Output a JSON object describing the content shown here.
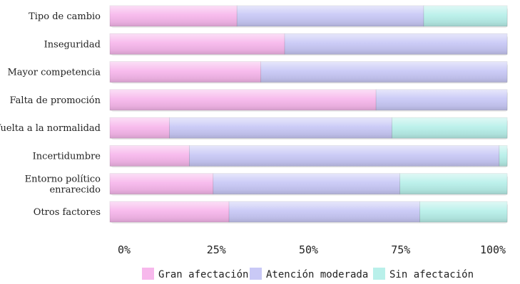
{
  "chart_data": {
    "type": "bar",
    "orientation": "horizontal",
    "stacked": true,
    "normalized": true,
    "categories": [
      [
        "Tipo de cambio"
      ],
      [
        "Inseguridad"
      ],
      [
        "Mayor competencia"
      ],
      [
        "Falta de promoción"
      ],
      [
        "Vuelta a la normalidad"
      ],
      [
        "Incertidumbre"
      ],
      [
        "Entorno político",
        "enrarecido"
      ],
      [
        "Otros factores"
      ]
    ],
    "series": [
      {
        "name": "Gran afectación",
        "color": "#f7b8ec",
        "values": [
          32,
          44,
          38,
          67,
          15,
          20,
          26,
          30
        ]
      },
      {
        "name": "Atención moderada",
        "color": "#c9c9f6",
        "values": [
          47,
          56,
          62,
          33,
          56,
          78,
          47,
          48
        ]
      },
      {
        "name": "Sin afectación",
        "color": "#b9f0ea",
        "values": [
          21,
          0,
          0,
          0,
          29,
          2,
          27,
          22
        ]
      }
    ],
    "xticks": [
      "0%",
      "25%",
      "50%",
      "75%",
      "100%"
    ],
    "xlim": [
      0,
      100
    ],
    "grid": false,
    "legend": "bottom"
  }
}
